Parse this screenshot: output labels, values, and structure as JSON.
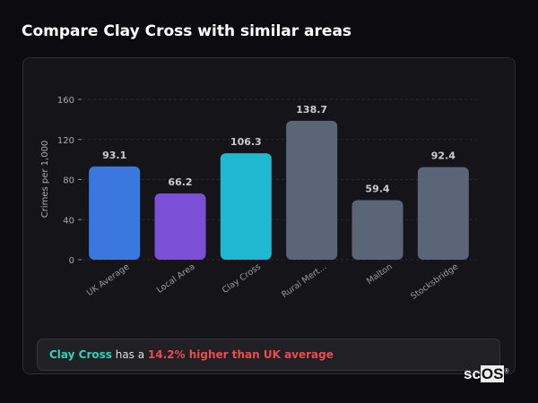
{
  "title": "Compare Clay Cross with similar areas",
  "chart_data": {
    "type": "bar",
    "ylabel": "Crimes per 1,000",
    "xlabel": "",
    "ylim": [
      0,
      160
    ],
    "yticks": [
      0,
      40,
      80,
      120,
      160
    ],
    "grid": true,
    "categories": [
      "UK Average",
      "Local Area",
      "Clay Cross",
      "Rural Mert...",
      "Malton",
      "Stocksbridge"
    ],
    "values": [
      93.1,
      66.2,
      106.3,
      138.7,
      59.4,
      92.4
    ],
    "value_labels": [
      "93.1",
      "66.2",
      "106.3",
      "138.7",
      "59.4",
      "92.4"
    ],
    "colors": [
      "#3a78e0",
      "#7b4fd6",
      "#20b8d0",
      "#5a6578",
      "#5a6578",
      "#5a6578"
    ]
  },
  "footer": {
    "area": "Clay Cross",
    "middle": " has a ",
    "comparison": "14.2% higher than UK average"
  },
  "logo": {
    "text_a": "sc",
    "text_b": "OS",
    "mark": "®"
  }
}
